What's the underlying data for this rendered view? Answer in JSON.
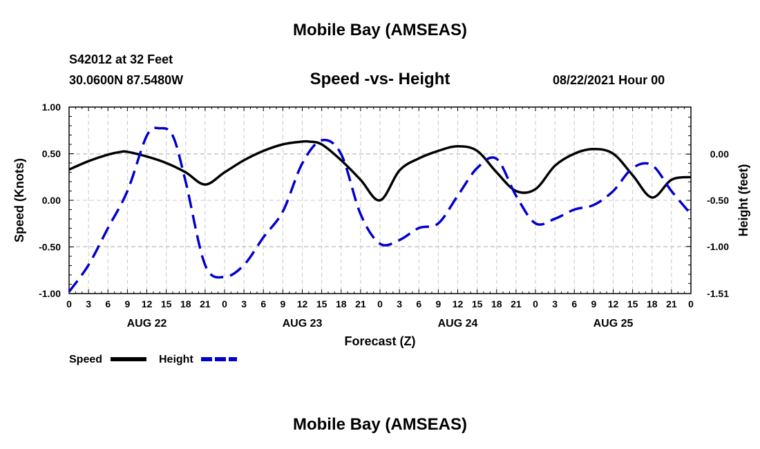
{
  "header": {
    "title": "Mobile Bay (AMSEAS)",
    "station": "S42012 at 32 Feet",
    "coords": "30.0600N  87.5480W",
    "chart_title": "Speed -vs- Height",
    "datetime": "08/22/2021 Hour 00"
  },
  "footer": {
    "title": "Mobile Bay (AMSEAS)"
  },
  "chart_data": {
    "type": "line",
    "title": "Speed -vs- Height",
    "xlabel": "Forecast (Z)",
    "ylabel": "Speed (Knots)",
    "y2label": "Height (feet)",
    "x_unit": "hours since 08/22/2021 00Z",
    "xlim": [
      0,
      96
    ],
    "ylim": [
      -1.0,
      1.0
    ],
    "y2lim": [
      -1.51,
      0.51
    ],
    "grid": true,
    "x_ticks": [
      0,
      3,
      6,
      9,
      12,
      15,
      18,
      21,
      24,
      27,
      30,
      33,
      36,
      39,
      42,
      45,
      48,
      51,
      54,
      57,
      60,
      63,
      66,
      69,
      72,
      75,
      78,
      81,
      84,
      87,
      90,
      93,
      96
    ],
    "x_tick_labels": [
      "0",
      "3",
      "6",
      "9",
      "12",
      "15",
      "18",
      "21",
      "0",
      "3",
      "6",
      "9",
      "12",
      "15",
      "18",
      "21",
      "0",
      "3",
      "6",
      "9",
      "12",
      "15",
      "18",
      "21",
      "0",
      "3",
      "6",
      "9",
      "12",
      "15",
      "18",
      "21",
      "0"
    ],
    "date_labels": [
      {
        "x": 12,
        "label": "AUG 22"
      },
      {
        "x": 36,
        "label": "AUG 23"
      },
      {
        "x": 60,
        "label": "AUG 24"
      },
      {
        "x": 84,
        "label": "AUG 25"
      }
    ],
    "y_ticks": [
      1.0,
      0.5,
      0.0,
      -0.5,
      -1.0
    ],
    "y_tick_labels": [
      "1.00",
      "0.50",
      "0.00",
      "-0.50",
      "-1.00"
    ],
    "y2_ticks": [
      0.0,
      -0.5,
      -1.0,
      -1.51
    ],
    "y2_tick_labels": [
      "0.00",
      "-0.50",
      "-1.00",
      "-1.51"
    ],
    "legend": {
      "placement": "bottom-left"
    },
    "series": [
      {
        "name": "Speed",
        "axis": "left",
        "color": "#000000",
        "style": "solid",
        "x": [
          0,
          3,
          6,
          8,
          9,
          12,
          15,
          18,
          21,
          24,
          27,
          30,
          33,
          36,
          37,
          39,
          42,
          45,
          48,
          51,
          54,
          57,
          60,
          63,
          66,
          69,
          72,
          75,
          78,
          81,
          84,
          87,
          90,
          93,
          96
        ],
        "values": [
          0.33,
          0.42,
          0.49,
          0.52,
          0.52,
          0.47,
          0.4,
          0.3,
          0.17,
          0.3,
          0.43,
          0.53,
          0.6,
          0.63,
          0.63,
          0.6,
          0.43,
          0.22,
          0.0,
          0.32,
          0.45,
          0.53,
          0.58,
          0.53,
          0.3,
          0.1,
          0.12,
          0.37,
          0.5,
          0.55,
          0.5,
          0.27,
          0.03,
          0.22,
          0.25
        ]
      },
      {
        "name": "Height",
        "axis": "right",
        "color": "#0000cc",
        "style": "dashed",
        "x": [
          0,
          3,
          6,
          9,
          12,
          14,
          16,
          18,
          21,
          24,
          27,
          30,
          33,
          36,
          39,
          42,
          45,
          48,
          51,
          54,
          57,
          60,
          63,
          66,
          69,
          72,
          75,
          78,
          81,
          84,
          87,
          90,
          93,
          96
        ],
        "values": [
          -1.49,
          -1.2,
          -0.8,
          -0.4,
          0.2,
          0.28,
          0.2,
          -0.3,
          -1.2,
          -1.33,
          -1.2,
          -0.9,
          -0.62,
          -0.1,
          0.15,
          0.0,
          -0.65,
          -0.97,
          -0.93,
          -0.8,
          -0.75,
          -0.45,
          -0.15,
          -0.05,
          -0.45,
          -0.75,
          -0.7,
          -0.6,
          -0.55,
          -0.4,
          -0.15,
          -0.12,
          -0.4,
          -0.65
        ]
      }
    ]
  }
}
